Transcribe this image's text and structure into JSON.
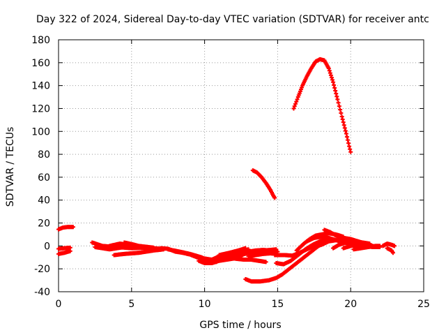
{
  "chart_data": {
    "type": "scatter",
    "title": "Day 322 of 2024, Sidereal Day-to-day VTEC variation (SDTVAR) for receiver antc",
    "xlabel": "GPS time / hours",
    "ylabel": "SDTVAR / TECUs",
    "xlim": [
      0,
      25
    ],
    "ylim": [
      -40,
      180
    ],
    "xticks": [
      0,
      5,
      10,
      15,
      20,
      25
    ],
    "yticks": [
      -40,
      -20,
      0,
      20,
      40,
      60,
      80,
      100,
      120,
      140,
      160,
      180
    ],
    "grid": true,
    "series_color": "#ff0000",
    "marker": "plus",
    "tracks": [
      [
        [
          0.0,
          14.5
        ],
        [
          0.3,
          16
        ],
        [
          0.6,
          16.5
        ],
        [
          1.0,
          16.5
        ]
      ],
      [
        [
          0.0,
          -2.5
        ],
        [
          0.4,
          -2
        ],
        [
          0.8,
          -1.5
        ]
      ],
      [
        [
          0.0,
          -7
        ],
        [
          0.4,
          -6
        ],
        [
          0.8,
          -4.5
        ]
      ],
      [
        [
          2.3,
          3
        ],
        [
          3.0,
          0
        ],
        [
          4.0,
          -1
        ],
        [
          5.0,
          -2
        ],
        [
          6.0,
          -1.5
        ],
        [
          7.0,
          -2.5
        ]
      ],
      [
        [
          2.5,
          -1
        ],
        [
          3.5,
          -3
        ],
        [
          4.5,
          -1
        ],
        [
          5.5,
          0
        ],
        [
          6.5,
          -1.5
        ]
      ],
      [
        [
          3.5,
          0
        ],
        [
          4.2,
          2
        ],
        [
          4.8,
          1
        ],
        [
          5.3,
          -1
        ]
      ],
      [
        [
          3.8,
          -8
        ],
        [
          4.5,
          -7
        ],
        [
          5.5,
          -6
        ],
        [
          6.5,
          -4
        ],
        [
          7.2,
          -3
        ]
      ],
      [
        [
          4.5,
          3
        ],
        [
          5.2,
          1
        ],
        [
          6.0,
          -2
        ],
        [
          6.8,
          -3.5
        ]
      ],
      [
        [
          7.0,
          -2
        ],
        [
          7.5,
          -2.5
        ],
        [
          8.0,
          -5
        ],
        [
          8.5,
          -6
        ],
        [
          9.0,
          -7.5
        ],
        [
          9.5,
          -10
        ],
        [
          10.0,
          -12
        ]
      ],
      [
        [
          7.5,
          -3
        ],
        [
          8.3,
          -5
        ],
        [
          9.0,
          -7
        ],
        [
          9.8,
          -10
        ],
        [
          10.3,
          -13
        ],
        [
          10.8,
          -14
        ]
      ],
      [
        [
          9.6,
          -13
        ],
        [
          10.0,
          -15
        ],
        [
          10.5,
          -15
        ],
        [
          11.0,
          -13
        ],
        [
          11.5,
          -12
        ],
        [
          12.0,
          -11
        ],
        [
          12.5,
          -9
        ]
      ],
      [
        [
          10.0,
          -11
        ],
        [
          10.5,
          -12
        ],
        [
          11.0,
          -9
        ],
        [
          11.5,
          -8
        ],
        [
          12.0,
          -7
        ],
        [
          12.5,
          -5
        ],
        [
          13.0,
          -3
        ]
      ],
      [
        [
          10.5,
          -14
        ],
        [
          11.0,
          -12.5
        ],
        [
          11.5,
          -10
        ],
        [
          12.0,
          -8
        ],
        [
          12.5,
          -7
        ],
        [
          13.0,
          -6
        ]
      ],
      [
        [
          11.0,
          -8
        ],
        [
          11.7,
          -6
        ],
        [
          12.3,
          -4
        ],
        [
          12.8,
          -2
        ]
      ],
      [
        [
          12.0,
          -11
        ],
        [
          12.7,
          -12
        ],
        [
          13.2,
          -12
        ],
        [
          13.7,
          -13
        ],
        [
          14.2,
          -14
        ]
      ],
      [
        [
          12.5,
          -8
        ],
        [
          13.0,
          -6
        ],
        [
          13.5,
          -5
        ],
        [
          14.0,
          -4
        ],
        [
          14.5,
          -3.5
        ],
        [
          14.9,
          -3
        ]
      ],
      [
        [
          13.0,
          -5
        ],
        [
          13.5,
          -4
        ],
        [
          14.0,
          -3.5
        ],
        [
          14.5,
          -4
        ],
        [
          15.0,
          -5
        ]
      ],
      [
        [
          13.0,
          -9
        ],
        [
          13.5,
          -8
        ],
        [
          14.0,
          -7
        ],
        [
          14.5,
          -6.5
        ],
        [
          15.0,
          -7
        ]
      ],
      [
        [
          12.8,
          -29
        ],
        [
          13.2,
          -31
        ],
        [
          13.8,
          -31
        ],
        [
          14.4,
          -30
        ],
        [
          14.9,
          -28
        ],
        [
          15.3,
          -25
        ],
        [
          15.7,
          -21
        ],
        [
          16.2,
          -16
        ],
        [
          16.8,
          -10
        ],
        [
          17.3,
          -5
        ],
        [
          17.8,
          0
        ],
        [
          18.3,
          3
        ]
      ],
      [
        [
          14.8,
          -8
        ],
        [
          15.5,
          -8
        ],
        [
          16.0,
          -8.5
        ],
        [
          16.5,
          -6
        ],
        [
          17.0,
          -3
        ],
        [
          17.5,
          0
        ],
        [
          18.0,
          3
        ],
        [
          18.5,
          5
        ]
      ],
      [
        [
          14.9,
          -15
        ],
        [
          15.4,
          -16
        ],
        [
          15.9,
          -13
        ],
        [
          16.4,
          -8
        ],
        [
          16.9,
          -3
        ],
        [
          17.4,
          1
        ],
        [
          17.9,
          4
        ],
        [
          18.4,
          6
        ]
      ],
      [
        [
          16.3,
          -4
        ],
        [
          16.8,
          2
        ],
        [
          17.2,
          6
        ],
        [
          17.6,
          9
        ],
        [
          18.0,
          10
        ],
        [
          18.5,
          11
        ],
        [
          19.0,
          10
        ],
        [
          19.5,
          8
        ]
      ],
      [
        [
          17.0,
          4
        ],
        [
          17.5,
          7
        ],
        [
          18.0,
          8
        ],
        [
          18.5,
          7
        ],
        [
          19.0,
          5
        ],
        [
          19.5,
          3
        ],
        [
          20.0,
          2
        ]
      ],
      [
        [
          18.2,
          14
        ],
        [
          18.6,
          12
        ],
        [
          19.0,
          9
        ],
        [
          19.5,
          7
        ],
        [
          20.0,
          6
        ],
        [
          20.5,
          4
        ],
        [
          21.0,
          2
        ],
        [
          21.5,
          0
        ]
      ],
      [
        [
          18.0,
          1
        ],
        [
          18.5,
          4
        ],
        [
          19.0,
          5
        ],
        [
          19.5,
          5
        ],
        [
          20.0,
          4
        ],
        [
          20.5,
          3
        ],
        [
          21.0,
          1
        ]
      ],
      [
        [
          18.8,
          -2
        ],
        [
          19.2,
          1
        ],
        [
          19.7,
          3
        ],
        [
          20.3,
          4
        ],
        [
          20.8,
          3
        ],
        [
          21.3,
          2
        ]
      ],
      [
        [
          19.5,
          -2
        ],
        [
          20.0,
          0
        ],
        [
          20.5,
          1
        ],
        [
          21.0,
          0
        ],
        [
          21.5,
          -1
        ],
        [
          22.0,
          -1
        ]
      ],
      [
        [
          20.2,
          -3
        ],
        [
          20.7,
          -2
        ],
        [
          21.2,
          -1
        ],
        [
          21.7,
          0
        ],
        [
          22.0,
          0
        ]
      ],
      [
        [
          22.2,
          0
        ],
        [
          22.5,
          2
        ],
        [
          22.8,
          1
        ],
        [
          23.0,
          0
        ]
      ],
      [
        [
          22.5,
          -2
        ],
        [
          22.8,
          -4
        ],
        [
          22.9,
          -6
        ]
      ],
      [
        [
          13.3,
          66
        ],
        [
          13.6,
          64
        ],
        [
          13.9,
          60
        ],
        [
          14.2,
          55
        ],
        [
          14.5,
          49
        ],
        [
          14.7,
          44
        ],
        [
          14.8,
          42
        ]
      ],
      [
        [
          16.1,
          120
        ],
        [
          16.4,
          130
        ],
        [
          16.7,
          140
        ],
        [
          17.0,
          148
        ],
        [
          17.3,
          155
        ],
        [
          17.6,
          161
        ],
        [
          17.9,
          163
        ],
        [
          18.2,
          162
        ],
        [
          18.5,
          155
        ],
        [
          18.8,
          143
        ],
        [
          19.1,
          128
        ],
        [
          19.4,
          113
        ],
        [
          19.7,
          98
        ],
        [
          19.9,
          87
        ],
        [
          20.0,
          82
        ]
      ]
    ]
  }
}
